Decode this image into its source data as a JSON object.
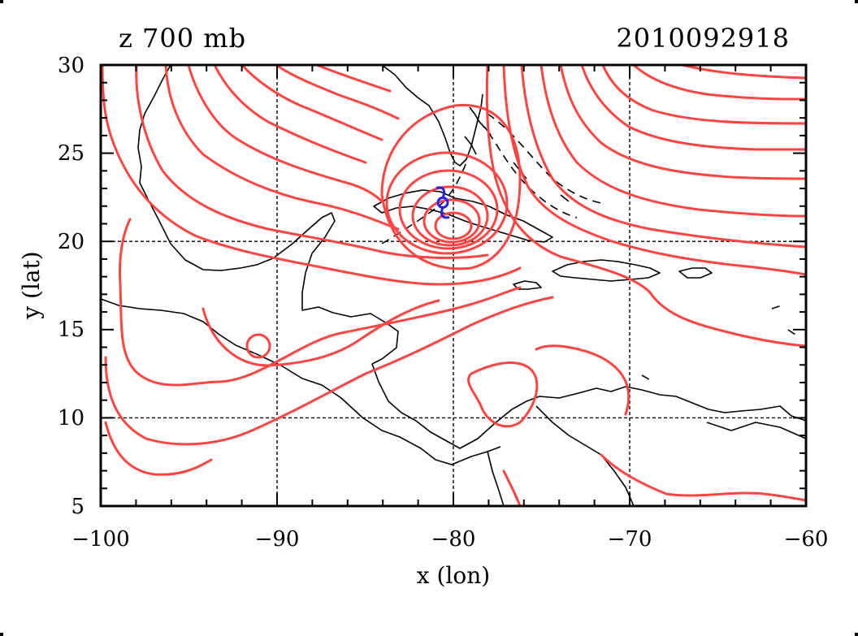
{
  "header": {
    "title_left": "z 700 mb",
    "title_right": "2010092918"
  },
  "axes": {
    "xlabel": "x (lon)",
    "ylabel": "y (lat)",
    "x_range": [
      -100,
      -60
    ],
    "y_range": [
      5,
      30
    ],
    "x_ticks": [
      "−100",
      "−90",
      "−80",
      "−70",
      "−60"
    ],
    "y_ticks": [
      "5",
      "10",
      "15",
      "20",
      "25",
      "30"
    ],
    "grid_x": [
      -90,
      -80,
      -70
    ],
    "grid_y": [
      10,
      20
    ]
  },
  "storm_marker": {
    "lon": -80.6,
    "lat": 22.2,
    "color": "#2222ee"
  },
  "colors": {
    "contour": "#ff4444",
    "coast": "#000000",
    "grid": "#000000"
  },
  "chart_data": {
    "type": "contour-map",
    "variable": "z",
    "level": "700 mb",
    "time": "2010092918",
    "xlim": [
      -100,
      -60
    ],
    "ylim": [
      5,
      30
    ],
    "grid": true,
    "low_centers": [
      {
        "lon": -80.3,
        "lat": 20.5
      },
      {
        "lon": -91.2,
        "lat": 14.0
      }
    ]
  }
}
